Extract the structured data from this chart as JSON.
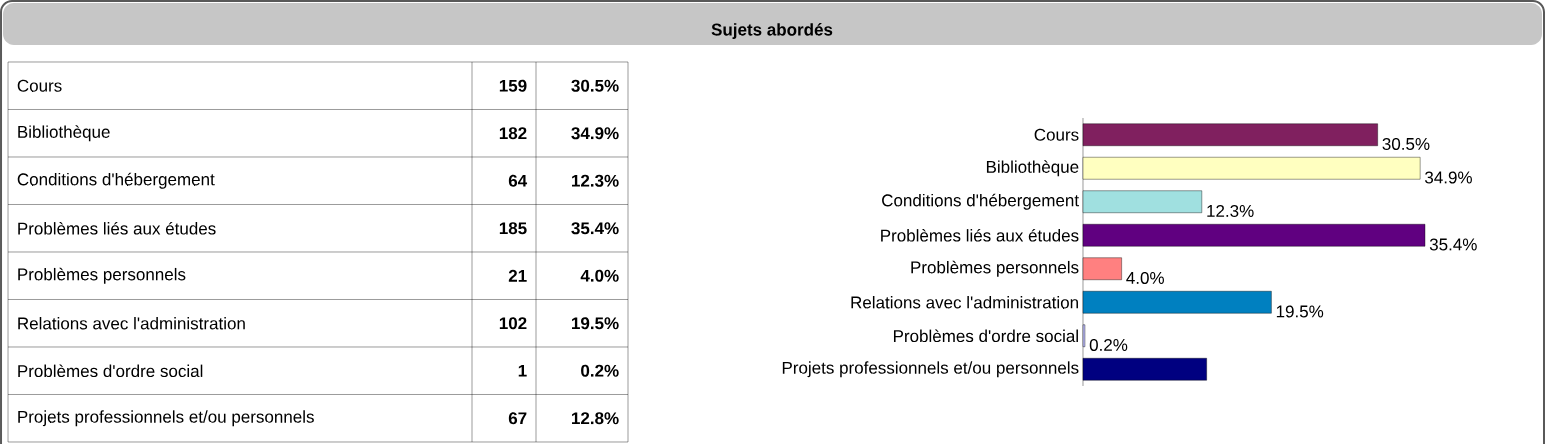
{
  "chart_data": [
    {
      "type": "other",
      "title": "Sujets abordés",
      "categories": [
        "Cours",
        "Bibliothèque",
        "Conditions d'hébergement",
        "Problèmes liés aux études",
        "Problèmes personnels",
        "Relations avec l'administration",
        "Problèmes d'ordre social",
        "Projets professionnels et/ou personnels"
      ],
      "values": [
        159,
        182,
        64,
        185,
        21,
        102,
        1,
        67
      ],
      "annotations": [
        "30.5%",
        "34.9%",
        "12.3%",
        "35.4%",
        "4.0%",
        "19.5%",
        "0.2%",
        "12.8%"
      ],
      "data_labels": true
    },
    {
      "type": "bar",
      "orientation": "horizontal",
      "categories": [
        "Cours",
        "Bibliothèque",
        "Conditions d'hébergement",
        "Problèmes liés aux études",
        "Problèmes personnels",
        "Relations avec l'administration",
        "Problèmes d'ordre social",
        "Projets professionnels et/ou personnels"
      ],
      "values": [
        30.5,
        34.9,
        12.3,
        35.4,
        4.0,
        19.5,
        0.2,
        12.8
      ],
      "colors": [
        "#80205f",
        "#ffffc0",
        "#a0e0e0",
        "#600080",
        "#ff8080",
        "#0080c0",
        "#c0c0ff",
        "#000080"
      ],
      "value_labels": [
        "30.5%",
        "34.9%",
        "12.3%",
        "35.4%",
        "4.0%",
        "19.5%",
        "0.2%",
        null
      ]
    }
  ]
}
